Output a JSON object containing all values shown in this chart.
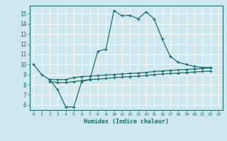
{
  "xlabel": "Humidex (Indice chaleur)",
  "bg_color": "#cfe8ef",
  "line_color": "#1a6e6a",
  "grid_color": "#ffffff",
  "xlim": [
    -0.5,
    23.5
  ],
  "ylim": [
    5.5,
    15.8
  ],
  "xticks": [
    0,
    1,
    2,
    3,
    4,
    5,
    6,
    7,
    8,
    9,
    10,
    11,
    12,
    13,
    14,
    15,
    16,
    17,
    18,
    19,
    20,
    21,
    22,
    23
  ],
  "yticks": [
    6,
    7,
    8,
    9,
    10,
    11,
    12,
    13,
    14,
    15
  ],
  "line1_x": [
    0,
    1,
    2,
    3,
    4,
    5,
    6,
    7,
    8,
    9,
    10,
    11,
    12,
    13,
    14,
    15,
    16,
    17,
    18,
    19,
    20,
    21,
    22
  ],
  "line1_y": [
    10,
    9,
    8.5,
    7.5,
    5.8,
    5.8,
    8.3,
    8.5,
    11.3,
    11.5,
    15.3,
    14.8,
    14.85,
    14.5,
    15.2,
    14.5,
    12.5,
    10.8,
    10.2,
    10.0,
    9.8,
    9.7,
    9.7
  ],
  "line2_x": [
    2,
    3,
    4,
    5,
    6,
    7,
    8,
    9,
    10,
    11,
    12,
    13,
    14,
    15,
    16,
    17,
    18,
    19,
    20,
    21,
    22
  ],
  "line2_y": [
    8.5,
    8.5,
    8.5,
    8.7,
    8.8,
    8.85,
    8.9,
    8.95,
    9.0,
    9.05,
    9.1,
    9.15,
    9.2,
    9.3,
    9.35,
    9.4,
    9.45,
    9.5,
    9.55,
    9.6,
    9.65
  ],
  "line3_x": [
    2,
    3,
    4,
    5,
    6,
    7,
    8,
    9,
    10,
    11,
    12,
    13,
    14,
    15,
    16,
    17,
    18,
    19,
    20,
    21,
    22
  ],
  "line3_y": [
    8.3,
    8.2,
    8.2,
    8.3,
    8.4,
    8.5,
    8.55,
    8.6,
    8.7,
    8.75,
    8.8,
    8.85,
    8.9,
    9.0,
    9.05,
    9.1,
    9.15,
    9.2,
    9.25,
    9.3,
    9.35
  ]
}
